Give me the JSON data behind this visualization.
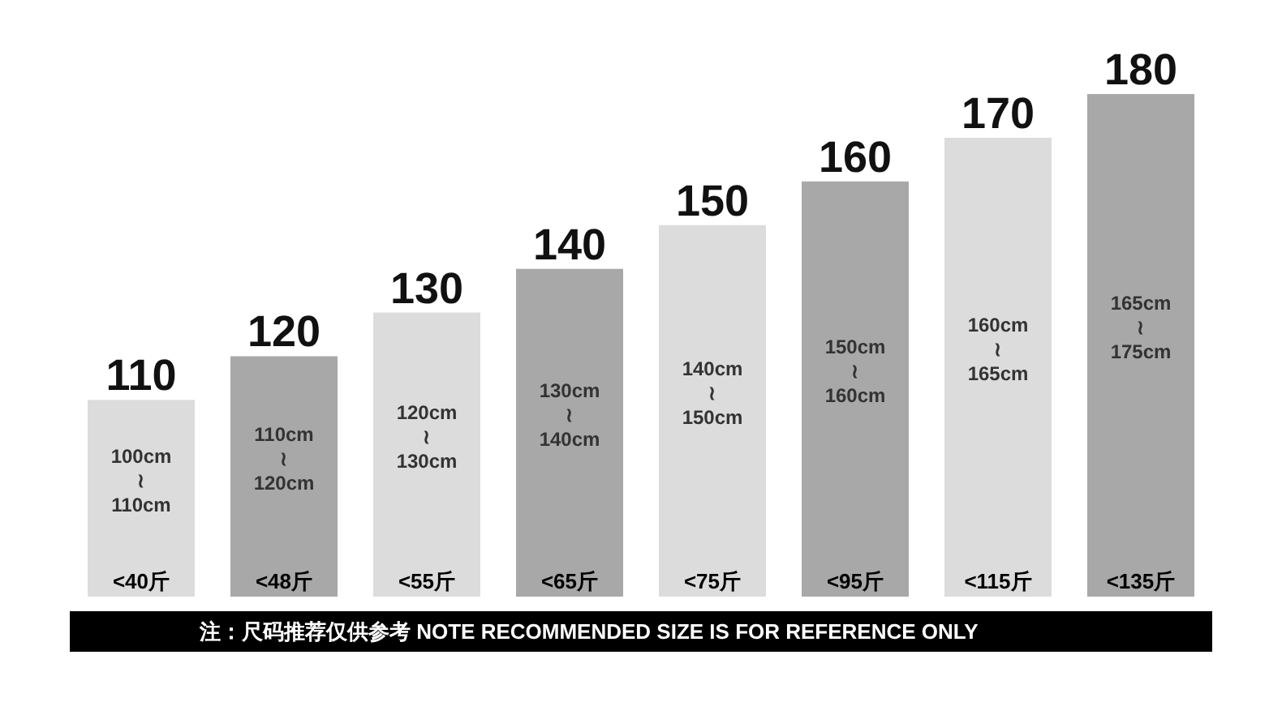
{
  "chart_data": {
    "type": "bar",
    "categories": [
      "<40斤",
      "<48斤",
      "<55斤",
      "<65斤",
      "<75斤",
      "<95斤",
      "<115斤",
      "<135斤"
    ],
    "values": [
      110,
      120,
      130,
      140,
      150,
      160,
      170,
      180
    ],
    "colors": [
      "#dcdcdc",
      "#a8a8a8",
      "#dcdcdc",
      "#a8a8a8",
      "#dcdcdc",
      "#a8a8a8",
      "#dcdcdc",
      "#a8a8a8"
    ],
    "ylim": [
      65,
      180
    ],
    "data_labels": true,
    "annotations": [
      "100cm\n≀\n110cm",
      "110cm\n≀\n120cm",
      "120cm\n≀\n130cm",
      "130cm\n≀\n140cm",
      "140cm\n≀\n150cm",
      "150cm\n≀\n160cm",
      "160cm\n≀\n165cm",
      "165cm\n≀\n175cm",
      "注：尺码推荐仅供参考 NOTE RECOMMENDED SIZE IS FOR REFERENCE ONLY"
    ]
  }
}
